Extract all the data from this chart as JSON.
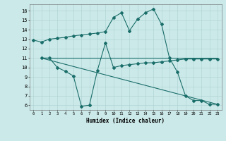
{
  "title": "",
  "xlabel": "Humidex (Indice chaleur)",
  "bg_color": "#cce9e9",
  "grid_color": "#aad0d0",
  "line_color": "#1a6e6a",
  "xlim": [
    -0.5,
    23.5
  ],
  "ylim": [
    5.5,
    16.7
  ],
  "yticks": [
    6,
    7,
    8,
    9,
    10,
    11,
    12,
    13,
    14,
    15,
    16
  ],
  "xticks": [
    0,
    1,
    2,
    3,
    4,
    5,
    6,
    7,
    8,
    9,
    10,
    11,
    12,
    13,
    14,
    15,
    16,
    17,
    18,
    19,
    20,
    21,
    22,
    23
  ],
  "line1_x": [
    0,
    1,
    2,
    3,
    4,
    5,
    6,
    7,
    8,
    9,
    10,
    11,
    12,
    13,
    14,
    15,
    16,
    17,
    18,
    19,
    20,
    21,
    22,
    23
  ],
  "line1_y": [
    12.9,
    12.7,
    13.0,
    13.1,
    13.2,
    13.35,
    13.45,
    13.55,
    13.65,
    13.8,
    15.3,
    15.8,
    13.9,
    15.1,
    15.8,
    16.2,
    14.6,
    11.0,
    9.5,
    7.0,
    6.5,
    6.5,
    6.1,
    6.1
  ],
  "line2_x": [
    1,
    2,
    3,
    4,
    5,
    6,
    7,
    8,
    9,
    10,
    11,
    12,
    13,
    14,
    15,
    16,
    17,
    18,
    19,
    20,
    21,
    22,
    23
  ],
  "line2_y": [
    11.0,
    11.0,
    10.0,
    9.6,
    9.1,
    5.9,
    6.0,
    9.7,
    12.6,
    10.0,
    10.2,
    10.3,
    10.4,
    10.5,
    10.5,
    10.6,
    10.7,
    10.8,
    10.9,
    10.9,
    10.9,
    10.9,
    10.9
  ],
  "line3_x": [
    1,
    23
  ],
  "line3_y": [
    11.0,
    11.0
  ],
  "line4_x": [
    1,
    23
  ],
  "line4_y": [
    11.0,
    6.1
  ]
}
